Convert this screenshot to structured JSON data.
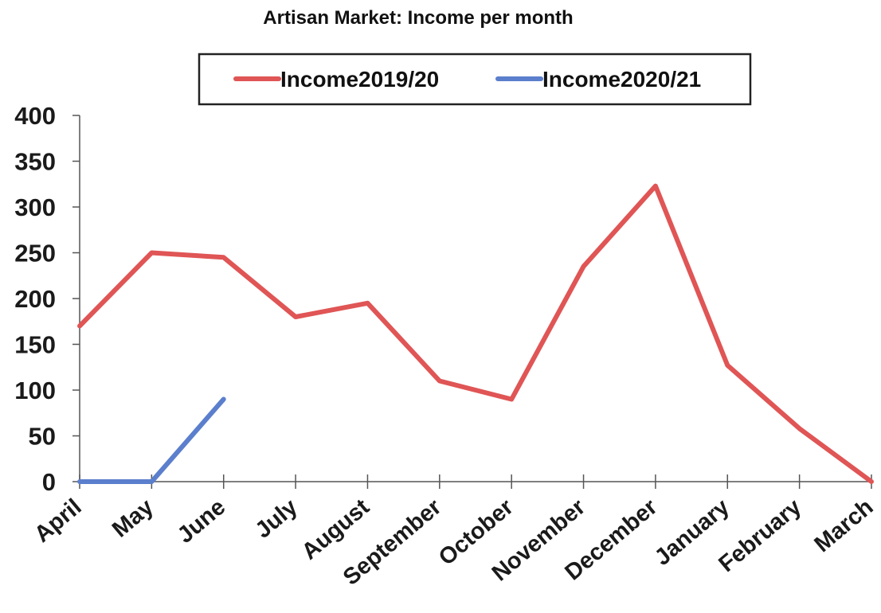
{
  "chart_data": {
    "type": "line",
    "title": "Artisan Market: Income per month",
    "xlabel": "",
    "ylabel": "",
    "categories": [
      "April",
      "May",
      "June",
      "July",
      "August",
      "September",
      "October",
      "November",
      "December",
      "January",
      "February",
      "March"
    ],
    "series": [
      {
        "name": "Income2019/20",
        "color": "#e05555",
        "values": [
          170,
          250,
          245,
          180,
          195,
          110,
          90,
          235,
          323,
          127,
          58,
          0
        ]
      },
      {
        "name": "Income2020/21",
        "color": "#5b7fcc",
        "values": [
          0,
          0,
          90,
          null,
          null,
          null,
          null,
          null,
          null,
          null,
          null,
          null
        ]
      }
    ],
    "ylim": [
      0,
      400
    ],
    "yticks": [
      0,
      50,
      100,
      150,
      200,
      250,
      300,
      350,
      400
    ],
    "grid": false,
    "legend_position": "top"
  }
}
